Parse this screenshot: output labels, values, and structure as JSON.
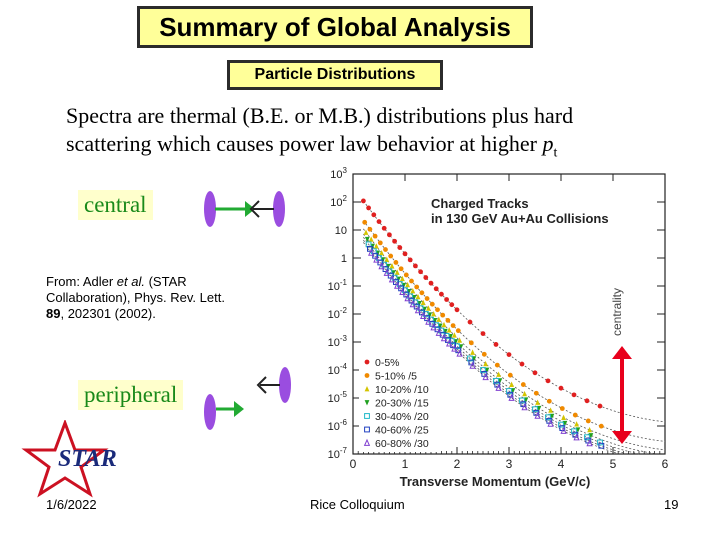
{
  "slide": {
    "title": "Summary of Global Analysis",
    "subtitle": "Particle Distributions",
    "description_line1": "Spectra are thermal (B.E. or M.B.) distributions plus hard",
    "description_line2_prefix": "scattering which causes power law behavior at higher ",
    "description_var": "p",
    "description_sub": "t",
    "central_label": "central",
    "peripheral_label": "peripheral",
    "reference": {
      "line1_a": "From: Adler ",
      "line1_italic": "et al.",
      "line1_b": " (STAR",
      "line2": "Collaboration), Phys. Rev. Lett.",
      "line3_bold": "89",
      "line3_rest": ", 202301 (2002)."
    },
    "centrality_label": "centrality",
    "logo_text": "STAR",
    "footer_date": "1/6/2022",
    "footer_center": "Rice Colloquium",
    "footer_page": "19"
  },
  "chart_data": {
    "type": "scatter",
    "title": "Charged Tracks",
    "subtitle": "in 130 GeV Au+Au Collisions",
    "xlabel": "Transverse Momentum (GeV/c)",
    "ylabel": "",
    "xlim": [
      0,
      6
    ],
    "ylim_log10": [
      -7,
      3
    ],
    "x_ticks": [
      "0",
      "1",
      "2",
      "3",
      "4",
      "5",
      "6"
    ],
    "y_ticks": [
      "10^-7",
      "10^-6",
      "10^-5",
      "10^-4",
      "10^-3",
      "10^-2",
      "10^-1",
      "1",
      "10",
      "10^2",
      "10^3"
    ],
    "series": [
      {
        "name": "0-5%",
        "color": "#e02020",
        "marker": "circle-filled",
        "scale_log10": 0.0
      },
      {
        "name": "5-10% /5",
        "color": "#f08a00",
        "marker": "circle-filled",
        "scale_log10": -0.7
      },
      {
        "name": "10-20% /10",
        "color": "#d4c400",
        "marker": "triangle-filled",
        "scale_log10": -1.0
      },
      {
        "name": "20-30% /15",
        "color": "#20a020",
        "marker": "triangle-down-filled",
        "scale_log10": -1.18
      },
      {
        "name": "30-40% /20",
        "color": "#20b8c8",
        "marker": "square-open",
        "scale_log10": -1.3
      },
      {
        "name": "40-60% /25",
        "color": "#2040c0",
        "marker": "square-open",
        "scale_log10": -1.4
      },
      {
        "name": "60-80% /30",
        "color": "#8040d0",
        "marker": "triangle-open",
        "scale_log10": -1.48
      }
    ],
    "legend_position": "bottom-left"
  },
  "colors": {
    "title_bg": "#ffff99",
    "label_bg": "#ffffcc",
    "label_text": "#1a8a1a",
    "nucleus": "#9a4de0",
    "green_arrow": "#22aa33",
    "red_arrow": "#e8001c"
  }
}
